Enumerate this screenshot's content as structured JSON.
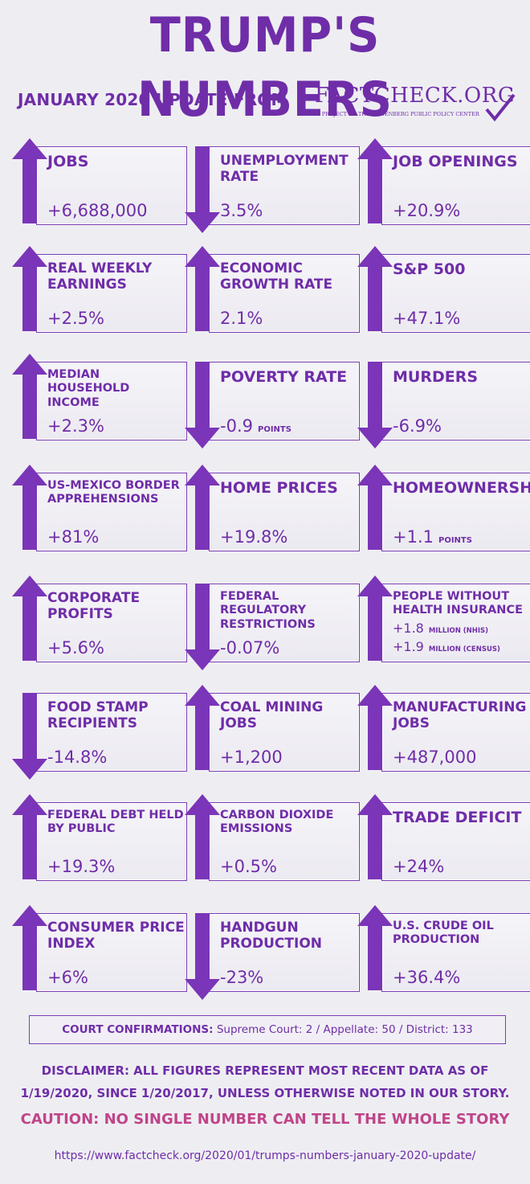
{
  "header": {
    "title": "TRUMP'S NUMBERS",
    "subtitle": "JANUARY 2020 UPDATE FROM",
    "logo_main": "FACTCHECK.ORG",
    "logo_sub": "A PROJECT OF THE ANNENBERG PUBLIC POLICY CENTER"
  },
  "colors": {
    "accent": "#6f2da8",
    "arrow": "#7b35b8",
    "caution": "#c0458a"
  },
  "metrics": [
    {
      "label": "JOBS",
      "value": "+6,688,000",
      "direction": "up"
    },
    {
      "label": "UNEMPLOYMENT RATE",
      "value": "3.5%",
      "direction": "down"
    },
    {
      "label": "JOB OPENINGS",
      "value": "+20.9%",
      "direction": "up"
    },
    {
      "label": "REAL WEEKLY EARNINGS",
      "value": "+2.5%",
      "direction": "up"
    },
    {
      "label": "ECONOMIC GROWTH RATE",
      "value": "2.1%",
      "direction": "up"
    },
    {
      "label": "S&P 500",
      "value": "+47.1%",
      "direction": "up"
    },
    {
      "label": "MEDIAN HOUSEHOLD INCOME",
      "value": "+2.3%",
      "direction": "up"
    },
    {
      "label": "POVERTY RATE",
      "value": "-0.9",
      "unit": "POINTS",
      "direction": "down"
    },
    {
      "label": "MURDERS",
      "value": "-6.9%",
      "direction": "down"
    },
    {
      "label": "US-MEXICO BORDER APPREHENSIONS",
      "value": "+81%",
      "direction": "up"
    },
    {
      "label": "HOME PRICES",
      "value": "+19.8%",
      "direction": "up"
    },
    {
      "label": "HOMEOWNERSHIP",
      "value": "+1.1",
      "unit": "POINTS",
      "direction": "up"
    },
    {
      "label": "CORPORATE PROFITS",
      "value": "+5.6%",
      "direction": "up"
    },
    {
      "label": "FEDERAL REGULATORY RESTRICTIONS",
      "value": "-0.07%",
      "direction": "down"
    },
    {
      "label": "PEOPLE WITHOUT HEALTH INSURANCE",
      "value": "+1.8",
      "unit": "MILLION (NHIS)",
      "value2": "+1.9",
      "unit2": "MILLION (CENSUS)",
      "direction": "up"
    },
    {
      "label": "FOOD STAMP RECIPIENTS",
      "value": "-14.8%",
      "direction": "down"
    },
    {
      "label": "COAL MINING JOBS",
      "value": "+1,200",
      "direction": "up"
    },
    {
      "label": "MANUFACTURING JOBS",
      "value": "+487,000",
      "direction": "up"
    },
    {
      "label": "FEDERAL DEBT HELD BY PUBLIC",
      "value": "+19.3%",
      "direction": "up"
    },
    {
      "label": "CARBON DIOXIDE EMISSIONS",
      "value": "+0.5%",
      "direction": "up"
    },
    {
      "label": "TRADE DEFICIT",
      "value": "+24%",
      "direction": "up"
    },
    {
      "label": "CONSUMER PRICE INDEX",
      "value": "+6%",
      "direction": "up"
    },
    {
      "label": "HANDGUN PRODUCTION",
      "value": "-23%",
      "direction": "down"
    },
    {
      "label": "U.S. CRUDE OIL PRODUCTION",
      "value": "+36.4%",
      "direction": "up"
    }
  ],
  "court": {
    "label": "COURT CONFIRMATIONS:",
    "text": "Supreme Court: 2 / Appellate: 50 / District: 133"
  },
  "disclaimer": "DISCLAIMER:  ALL FIGURES REPRESENT MOST RECENT DATA AS OF 1/19/2020, SINCE 1/20/2017, UNLESS OTHERWISE NOTED IN OUR STORY.",
  "caution": "CAUTION: NO SINGLE NUMBER CAN TELL THE WHOLE STORY",
  "url": "https://www.factcheck.org/2020/01/trumps-numbers-january-2020-update/"
}
